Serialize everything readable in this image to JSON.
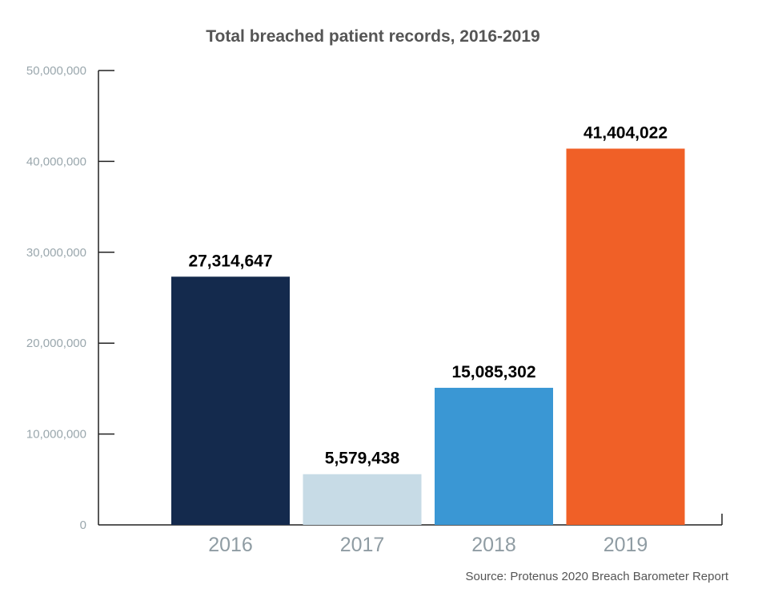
{
  "chart_data": {
    "type": "bar",
    "title": "Total breached patient records, 2016-2019",
    "categories": [
      "2016",
      "2017",
      "2018",
      "2019"
    ],
    "values": [
      27314647,
      5579438,
      15085302,
      41404022
    ],
    "value_labels": [
      "27,314,647",
      "5,579,438",
      "15,085,302",
      "41,404,022"
    ],
    "colors": [
      "#142a4d",
      "#c7dbe6",
      "#3a97d4",
      "#f06027"
    ],
    "ylim": [
      0,
      50000000
    ],
    "yticks": [
      0,
      10000000,
      20000000,
      30000000,
      40000000,
      50000000
    ],
    "ytick_labels": [
      "0",
      "10,000,000",
      "20,000,000",
      "30,000,000",
      "40,000,000",
      "50,000,000"
    ],
    "xlabel": "",
    "ylabel": "",
    "grid": false,
    "legend": "none",
    "source": "Source: Protenus 2020 Breach Barometer Report"
  }
}
